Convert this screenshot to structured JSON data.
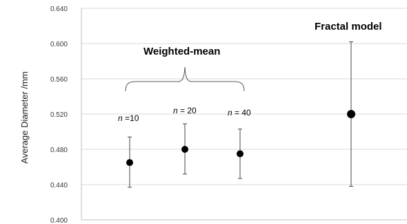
{
  "chart_data": {
    "type": "scatter",
    "ylabel": "Average Diameter /mm",
    "ylim": [
      0.4,
      0.64
    ],
    "yticks": [
      "0.640",
      "0.600",
      "0.560",
      "0.520",
      "0.480",
      "0.440",
      "0.400"
    ],
    "grid": true,
    "annotations": {
      "group_label": "Weighted-mean",
      "fractal_label": "Fractal model"
    },
    "points": [
      {
        "n_prefix": "n",
        "n_text": " =10",
        "y": 0.465,
        "err_low": 0.437,
        "err_high": 0.494
      },
      {
        "n_prefix": "n",
        "n_text": " = 20",
        "y": 0.48,
        "err_low": 0.452,
        "err_high": 0.509
      },
      {
        "n_prefix": "n",
        "n_text": " = 40",
        "y": 0.475,
        "err_low": 0.447,
        "err_high": 0.503
      },
      {
        "n_prefix": "",
        "n_text": "",
        "y": 0.52,
        "err_low": 0.438,
        "err_high": 0.602
      }
    ],
    "colors": {
      "marker": "#000000",
      "errorbar": "#444444",
      "grid": "#d9d9d9",
      "axis": "#bfbfbf"
    }
  }
}
